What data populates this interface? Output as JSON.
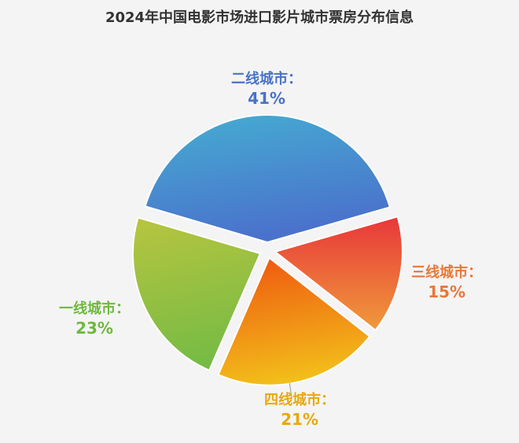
{
  "chart_data": {
    "type": "pie",
    "title": "2024年中国电影市场进口影片城市票房分布信息",
    "categories": [
      "二线城市",
      "三线城市",
      "四线城市",
      "一线城市"
    ],
    "values": [
      41,
      15,
      21,
      23
    ],
    "labels": [
      "二线城市：",
      "三线城市：",
      "四线城市：",
      "一线城市："
    ],
    "value_labels": [
      "41%",
      "15%",
      "21%",
      "23%"
    ],
    "colors": {
      "二线城市": [
        "#45aed2",
        "#4a72cc"
      ],
      "三线城市": [
        "#e8373a",
        "#f09a3a"
      ],
      "四线城市": [
        "#ef5a10",
        "#f2c21a"
      ],
      "一线城市": [
        "#b4c440",
        "#74bb44"
      ]
    },
    "label_colors": [
      "#4a72c6",
      "#e8773a",
      "#e8a80e",
      "#6fb83e"
    ],
    "legend": "none",
    "exploded": true
  }
}
